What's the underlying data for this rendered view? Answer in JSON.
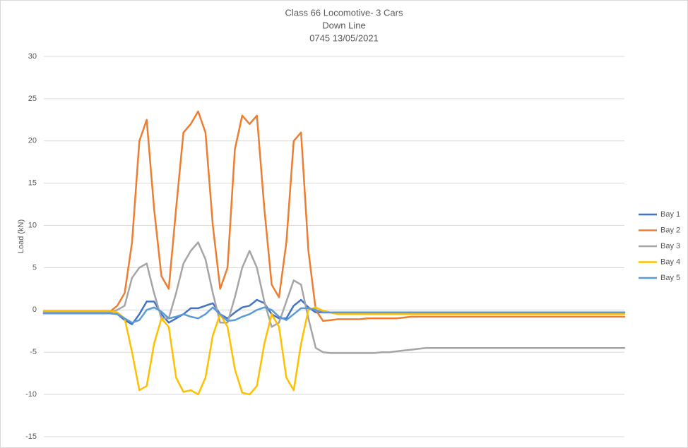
{
  "chart_data": {
    "type": "line",
    "title": [
      "Class 66 Locomotive- 3 Cars",
      "Down Line",
      "0745  13/05/2021"
    ],
    "y_label": "Load (kN)",
    "ylim": [
      -15,
      30
    ],
    "yticks": [
      -15,
      -10,
      -5,
      0,
      5,
      10,
      15,
      20,
      25,
      30
    ],
    "grid": true,
    "legend": "right",
    "series": [
      {
        "name": "Bay 1",
        "color": "#4472c4",
        "values": [
          -0.4,
          -0.4,
          -0.4,
          -0.4,
          -0.4,
          -0.4,
          -0.4,
          -0.4,
          -0.4,
          -0.4,
          -0.5,
          -1.2,
          -1.7,
          -0.5,
          1,
          1,
          -0.5,
          -1.5,
          -1,
          -0.5,
          0.2,
          0.2,
          0.5,
          0.8,
          -0.5,
          -1,
          -0.3,
          0.3,
          0.5,
          1.2,
          0.8,
          -0.5,
          -1,
          -1,
          0.5,
          1.2,
          0.3,
          -0.3,
          -0.3,
          -0.3,
          -0.3,
          -0.3,
          -0.3,
          -0.3,
          -0.3,
          -0.3,
          -0.3,
          -0.3,
          -0.3,
          -0.3,
          -0.3,
          -0.3,
          -0.3,
          -0.3,
          -0.3,
          -0.3,
          -0.3,
          -0.3,
          -0.3,
          -0.3,
          -0.3,
          -0.3,
          -0.3,
          -0.3,
          -0.3,
          -0.3,
          -0.3,
          -0.3,
          -0.3,
          -0.3,
          -0.3,
          -0.3,
          -0.3,
          -0.3,
          -0.3,
          -0.3,
          -0.3,
          -0.3,
          -0.3,
          -0.3
        ]
      },
      {
        "name": "Bay 2",
        "color": "#ed7d31",
        "values": [
          -0.2,
          -0.2,
          -0.2,
          -0.2,
          -0.2,
          -0.2,
          -0.2,
          -0.2,
          -0.2,
          -0.2,
          0.5,
          2,
          8,
          20,
          22.5,
          12,
          4,
          2.5,
          12,
          21,
          22,
          23.5,
          21,
          10,
          2.5,
          5,
          19,
          23,
          22,
          23,
          12,
          3,
          1.5,
          8,
          20,
          21,
          7,
          0,
          -1.3,
          -1.2,
          -1.1,
          -1.1,
          -1.1,
          -1.1,
          -1,
          -1,
          -1,
          -1,
          -1,
          -0.9,
          -0.8,
          -0.8,
          -0.8,
          -0.8,
          -0.8,
          -0.8,
          -0.8,
          -0.8,
          -0.8,
          -0.8,
          -0.8,
          -0.8,
          -0.8,
          -0.8,
          -0.8,
          -0.8,
          -0.8,
          -0.8,
          -0.8,
          -0.8,
          -0.8,
          -0.8,
          -0.8,
          -0.8,
          -0.8,
          -0.8,
          -0.8,
          -0.8,
          -0.8,
          -0.8
        ]
      },
      {
        "name": "Bay 3",
        "color": "#a5a5a5",
        "values": [
          -0.3,
          -0.3,
          -0.3,
          -0.3,
          -0.3,
          -0.3,
          -0.3,
          -0.3,
          -0.3,
          -0.3,
          0,
          0.5,
          3.8,
          5,
          5.5,
          2,
          -1,
          -1,
          2,
          5.5,
          7,
          8,
          6,
          2,
          -1.5,
          -1.5,
          1.5,
          5,
          7,
          5,
          1,
          -2,
          -1.5,
          1,
          3.5,
          3,
          -1,
          -4.5,
          -5,
          -5.1,
          -5.1,
          -5.1,
          -5.1,
          -5.1,
          -5.1,
          -5.1,
          -5,
          -5,
          -4.9,
          -4.8,
          -4.7,
          -4.6,
          -4.5,
          -4.5,
          -4.5,
          -4.5,
          -4.5,
          -4.5,
          -4.5,
          -4.5,
          -4.5,
          -4.5,
          -4.5,
          -4.5,
          -4.5,
          -4.5,
          -4.5,
          -4.5,
          -4.5,
          -4.5,
          -4.5,
          -4.5,
          -4.5,
          -4.5,
          -4.5,
          -4.5,
          -4.5,
          -4.5,
          -4.5,
          -4.5
        ]
      },
      {
        "name": "Bay 4",
        "color": "#ffc000",
        "values": [
          -0.1,
          -0.1,
          -0.1,
          -0.1,
          -0.1,
          -0.1,
          -0.1,
          -0.1,
          -0.1,
          -0.1,
          -0.3,
          -1,
          -5,
          -9.5,
          -9,
          -4,
          -1,
          -2,
          -8,
          -9.7,
          -9.5,
          -10,
          -8,
          -3,
          -0.5,
          -2,
          -7,
          -9.8,
          -10,
          -9,
          -4,
          -0.5,
          -2,
          -8,
          -9.5,
          -4,
          0,
          0.3,
          -0.1,
          -0.3,
          -0.5,
          -0.5,
          -0.5,
          -0.5,
          -0.5,
          -0.5,
          -0.5,
          -0.5,
          -0.5,
          -0.5,
          -0.5,
          -0.5,
          -0.5,
          -0.5,
          -0.5,
          -0.5,
          -0.5,
          -0.5,
          -0.5,
          -0.5,
          -0.5,
          -0.5,
          -0.5,
          -0.5,
          -0.5,
          -0.5,
          -0.5,
          -0.5,
          -0.5,
          -0.5,
          -0.5,
          -0.5,
          -0.5,
          -0.5,
          -0.5,
          -0.5,
          -0.5,
          -0.5,
          -0.5,
          -0.5
        ]
      },
      {
        "name": "Bay 5",
        "color": "#5b9bd5",
        "values": [
          -0.4,
          -0.4,
          -0.4,
          -0.4,
          -0.4,
          -0.4,
          -0.4,
          -0.4,
          -0.4,
          -0.4,
          -0.5,
          -1,
          -1.5,
          -1.2,
          0,
          0.3,
          -0.2,
          -1,
          -0.8,
          -0.5,
          -0.8,
          -1,
          -0.5,
          0.3,
          -0.5,
          -1.3,
          -1.2,
          -0.8,
          -0.5,
          0,
          0.3,
          0,
          -0.8,
          -1.2,
          -0.5,
          0.2,
          0.2,
          0,
          -0.3,
          -0.3,
          -0.3,
          -0.3,
          -0.3,
          -0.3,
          -0.3,
          -0.3,
          -0.3,
          -0.3,
          -0.3,
          -0.3,
          -0.3,
          -0.3,
          -0.3,
          -0.3,
          -0.3,
          -0.3,
          -0.3,
          -0.3,
          -0.3,
          -0.3,
          -0.3,
          -0.3,
          -0.3,
          -0.3,
          -0.3,
          -0.3,
          -0.3,
          -0.3,
          -0.3,
          -0.3,
          -0.3,
          -0.3,
          -0.3,
          -0.3,
          -0.3,
          -0.3,
          -0.3,
          -0.3,
          -0.3,
          -0.3
        ]
      }
    ]
  }
}
